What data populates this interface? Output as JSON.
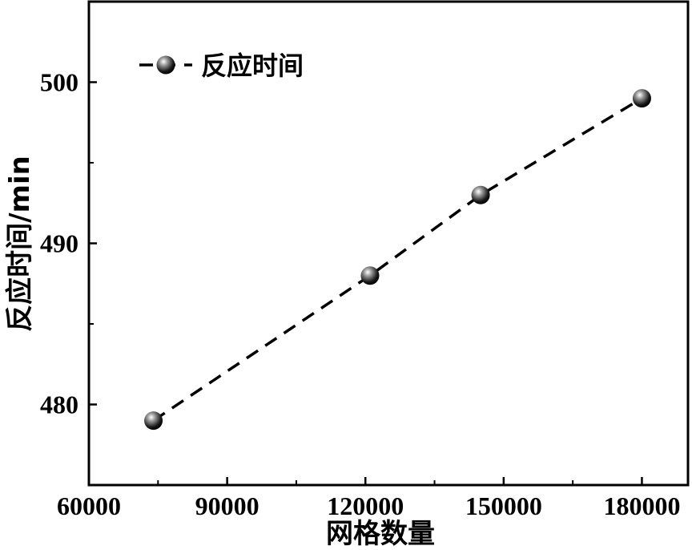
{
  "chart_data": {
    "type": "line",
    "xlabel": "网格数量",
    "ylabel": "反应时间/min",
    "xlim": [
      60000,
      190000
    ],
    "ylim": [
      475,
      505
    ],
    "x_ticks": [
      60000,
      90000,
      120000,
      150000,
      180000
    ],
    "x_tick_labels": [
      "60000",
      "90000",
      "120000",
      "150000",
      "180000"
    ],
    "y_ticks": [
      480,
      490,
      500
    ],
    "y_tick_labels": [
      "480",
      "490",
      "500"
    ],
    "grid": false,
    "legend_position": "top-left",
    "series": [
      {
        "name": "反应时间",
        "line_style": "dashed",
        "marker": "sphere",
        "color": "#000000",
        "x": [
          74000,
          121000,
          145000,
          180000
        ],
        "y": [
          479,
          488,
          493,
          499
        ]
      }
    ]
  }
}
